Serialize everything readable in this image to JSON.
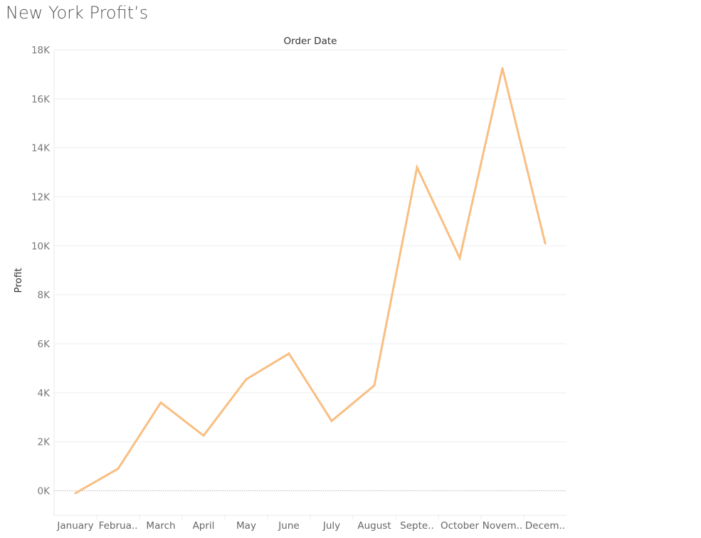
{
  "title": "New York Profit’s",
  "chart_data": {
    "type": "line",
    "title": "New York Profit’s",
    "column_header": "Order Date",
    "ylabel": "Profit",
    "xlabel": "",
    "categories": [
      "January",
      "Februa..",
      "March",
      "April",
      "May",
      "June",
      "July",
      "August",
      "Septe..",
      "October",
      "Novem..",
      "Decem.."
    ],
    "series": [
      {
        "values": [
          -100,
          900,
          3600,
          2250,
          4550,
          5600,
          2850,
          4300,
          13200,
          9500,
          17250,
          10100
        ],
        "color": "#f9be82"
      }
    ],
    "ylim": [
      -1000,
      18000
    ],
    "yticks": [
      0,
      2000,
      4000,
      6000,
      8000,
      10000,
      12000,
      14000,
      16000,
      18000
    ],
    "ytick_labels": [
      "0K",
      "2K",
      "4K",
      "6K",
      "8K",
      "10K",
      "12K",
      "14K",
      "16K",
      "18K"
    ],
    "grid": true,
    "legend": "none"
  }
}
